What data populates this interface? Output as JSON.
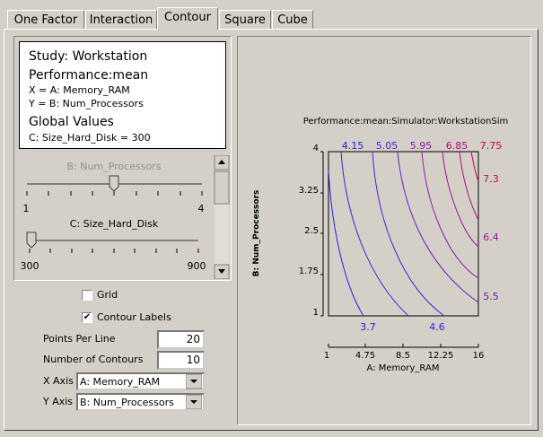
{
  "tabs": [
    "One Factor",
    "Interaction",
    "Contour",
    "Square",
    "Cube"
  ],
  "info": {
    "study": "Study: Workstation",
    "response": "Performance:mean",
    "x_line": "X = A: Memory_RAM",
    "y_line": "Y = B: Num_Processors",
    "global_title": "Global Values",
    "global_line": "C: Size_Hard_Disk = 300"
  },
  "sliders": [
    {
      "label": "B: Num_Processors",
      "min": "1",
      "max": "4"
    },
    {
      "label": "C: Size_Hard_Disk",
      "min": "300",
      "max": "900"
    }
  ],
  "checkboxes": [
    {
      "label": "Grid"
    },
    {
      "label": "Contour Labels"
    }
  ],
  "fields": [
    {
      "label": "Points Per Line",
      "value": "20"
    },
    {
      "label": "Number of Contours",
      "value": "10"
    },
    {
      "label": "X Axis",
      "value": "A: Memory_RAM"
    },
    {
      "label": "Y Axis",
      "value": "B: Num_Processors"
    }
  ],
  "plot": {
    "title": "Performance:mean:Simulator:WorkstationSim",
    "x_label": "A: Memory_RAM",
    "y_label": "B: Num_Processors",
    "x_ticks": [
      "1",
      "4.75",
      "8.5",
      "12.25",
      "16"
    ],
    "y_ticks": [
      "4",
      "3.25",
      "2.5",
      "1.75",
      "1"
    ],
    "contour_labels_top": [
      "4.15",
      "5.05",
      "5.95",
      "6.85",
      "7.75"
    ],
    "contour_labels_right": [
      "7.3",
      "6.4",
      "5.5"
    ],
    "contour_labels_bottom": [
      "3.7",
      "4.6"
    ]
  }
}
